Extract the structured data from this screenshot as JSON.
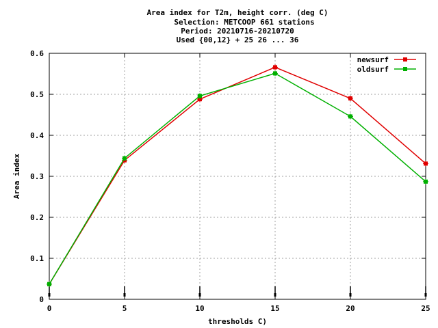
{
  "chart_data": {
    "type": "line",
    "title_lines": [
      "Area index  for T2m, height corr. (deg C)",
      "Selection: METCOOP    661 stations",
      "Period: 20210716-20210720",
      "Used {00,12} + 25 26 ... 36"
    ],
    "xlabel": "thresholds C)",
    "ylabel": "Area index",
    "x": [
      0,
      5,
      10,
      15,
      20,
      25
    ],
    "xlim": [
      0,
      25
    ],
    "ylim": [
      0,
      0.6
    ],
    "xticks": [
      "0",
      "5",
      "10",
      "15",
      "20",
      "25"
    ],
    "yticks": [
      "0",
      "0.1",
      "0.2",
      "0.3",
      "0.4",
      "0.5",
      "0.6"
    ],
    "grid": true,
    "legend_position": "top-right",
    "series": [
      {
        "name": "newsurf",
        "color": "#e00000",
        "values": [
          0.037,
          0.339,
          0.488,
          0.566,
          0.49,
          0.331
        ]
      },
      {
        "name": "oldsurf",
        "color": "#00b000",
        "values": [
          0.037,
          0.344,
          0.496,
          0.551,
          0.446,
          0.287
        ]
      }
    ]
  }
}
